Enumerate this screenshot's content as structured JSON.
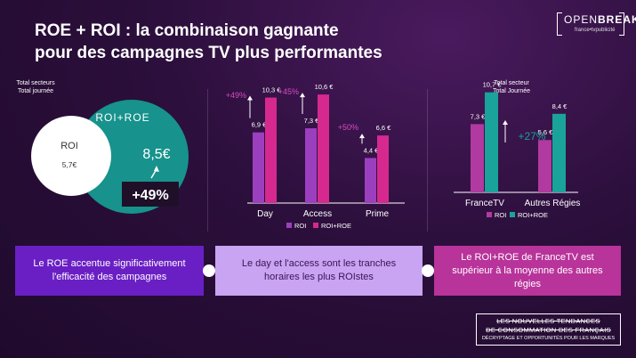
{
  "title_line1": "ROE + ROI : la combinaison gagnante",
  "title_line2": "pour des campagnes TV plus performantes",
  "logo": {
    "brand_light": "OPEN",
    "brand_bold": "BREAK",
    "sub": "france•tvpublicité"
  },
  "left_panel": {
    "label_line1": "Total secteurs",
    "label_line2": "Total journée",
    "roi_label": "ROI",
    "roi_value": "5,7€",
    "roi_roe_label": "ROI+ROE",
    "roi_roe_value": "8,5€",
    "uplift": "+49%"
  },
  "right_label_line1": "Total secteur",
  "right_label_line2": "Total Journée",
  "colors": {
    "roi_dayparts": "#9c3fbf",
    "roi_roe_dayparts": "#d6298f",
    "roi_regions": "#b03a9f",
    "roi_roe_regions": "#1aa39a",
    "pct_day": "#d84cc0",
    "pct_regions": "#1aa39a",
    "circle_big": "#17928c",
    "circle_small": "#ffffff"
  },
  "chart_data": [
    {
      "type": "bar",
      "categories": [
        "Day",
        "Access",
        "Prime"
      ],
      "series": [
        {
          "name": "ROI",
          "values": [
            6.9,
            7.3,
            4.4
          ],
          "labels": [
            "6,9 €",
            "7,3 €",
            "4,4 €"
          ]
        },
        {
          "name": "ROI+ROE",
          "values": [
            10.3,
            10.6,
            6.6
          ],
          "labels": [
            "10,3 €",
            "10,6 €",
            "6,6 €"
          ]
        }
      ],
      "annotations": [
        "+49%",
        "+45%",
        "+50%"
      ]
    },
    {
      "type": "bar",
      "categories": [
        "FranceTV",
        "Autres Régies"
      ],
      "series": [
        {
          "name": "ROI",
          "values": [
            7.3,
            5.6
          ],
          "labels": [
            "7,3 €",
            "5,6 €"
          ]
        },
        {
          "name": "ROI+ROE",
          "values": [
            10.7,
            8.4
          ],
          "labels": [
            "10,7 €",
            "8,4 €"
          ]
        }
      ],
      "annotations": [
        "+27%"
      ]
    }
  ],
  "callouts": [
    "Le ROE accentue significativement l'efficacité des campagnes",
    "Le day et l'access sont les tranches horaires les plus ROIstes",
    "Le ROI+ROE de FranceTV est supérieur à la moyenne des autres régies"
  ],
  "footer": {
    "line1": "LES NOUVELLES TENDANCES",
    "line2": "DE CONSOMMATION DES FRANÇAIS",
    "line3": "DÉCRYPTAGE ET OPPORTUNITÉS POUR LES MARQUES"
  }
}
